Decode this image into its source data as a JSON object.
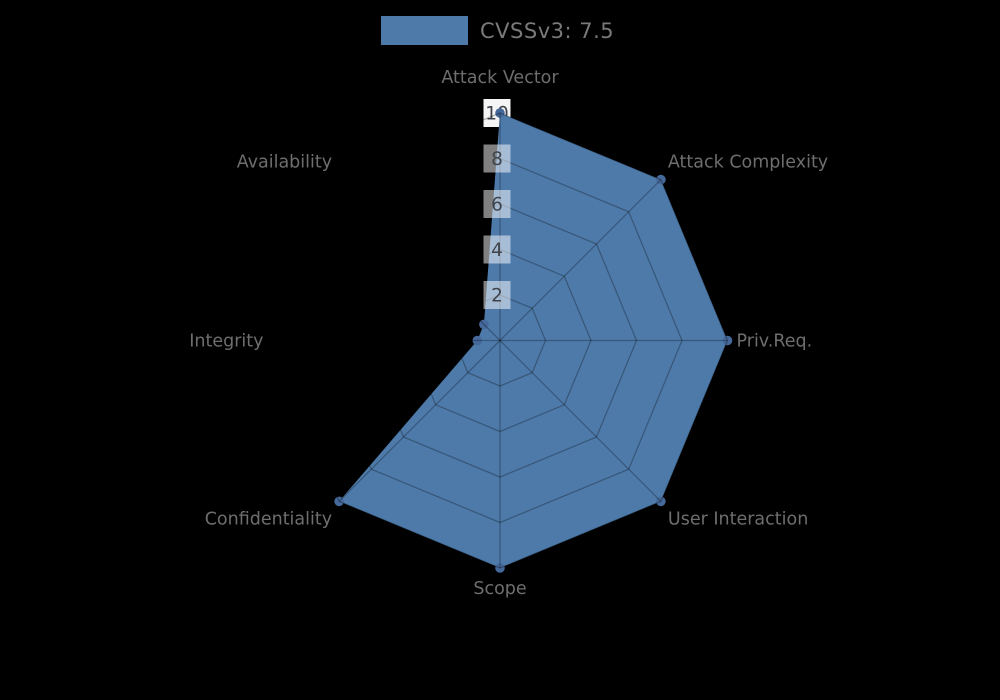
{
  "chart_data": {
    "type": "radar",
    "legend_label": "CVSSv3: 7.5",
    "categories": [
      "Attack Vector",
      "Attack Complexity",
      "Priv.Req.",
      "User Interaction",
      "Scope",
      "Confidentiality",
      "Integrity",
      "Availability"
    ],
    "series": [
      {
        "name": "CVSSv3: 7.5",
        "values": [
          10,
          10,
          10,
          10,
          10,
          10,
          1,
          1
        ]
      }
    ],
    "r_ticks": [
      2,
      4,
      6,
      8,
      10
    ],
    "r_max": 10,
    "start_angle_deg": 90,
    "direction": "clockwise",
    "grid": true,
    "legend_position": "top-center",
    "colors": {
      "background": "#000000",
      "series_fill": "#4e7aaa",
      "marker": "#45699b",
      "grid_line": "rgba(0,0,0,0.28)",
      "axis_label": "#6e6e6e",
      "tick_text": "#3f444c",
      "tick_box": "rgba(255,255,255,0.5)",
      "tick_box_top": "#f5f5f5",
      "legend_text": "#7a7a7a"
    }
  }
}
